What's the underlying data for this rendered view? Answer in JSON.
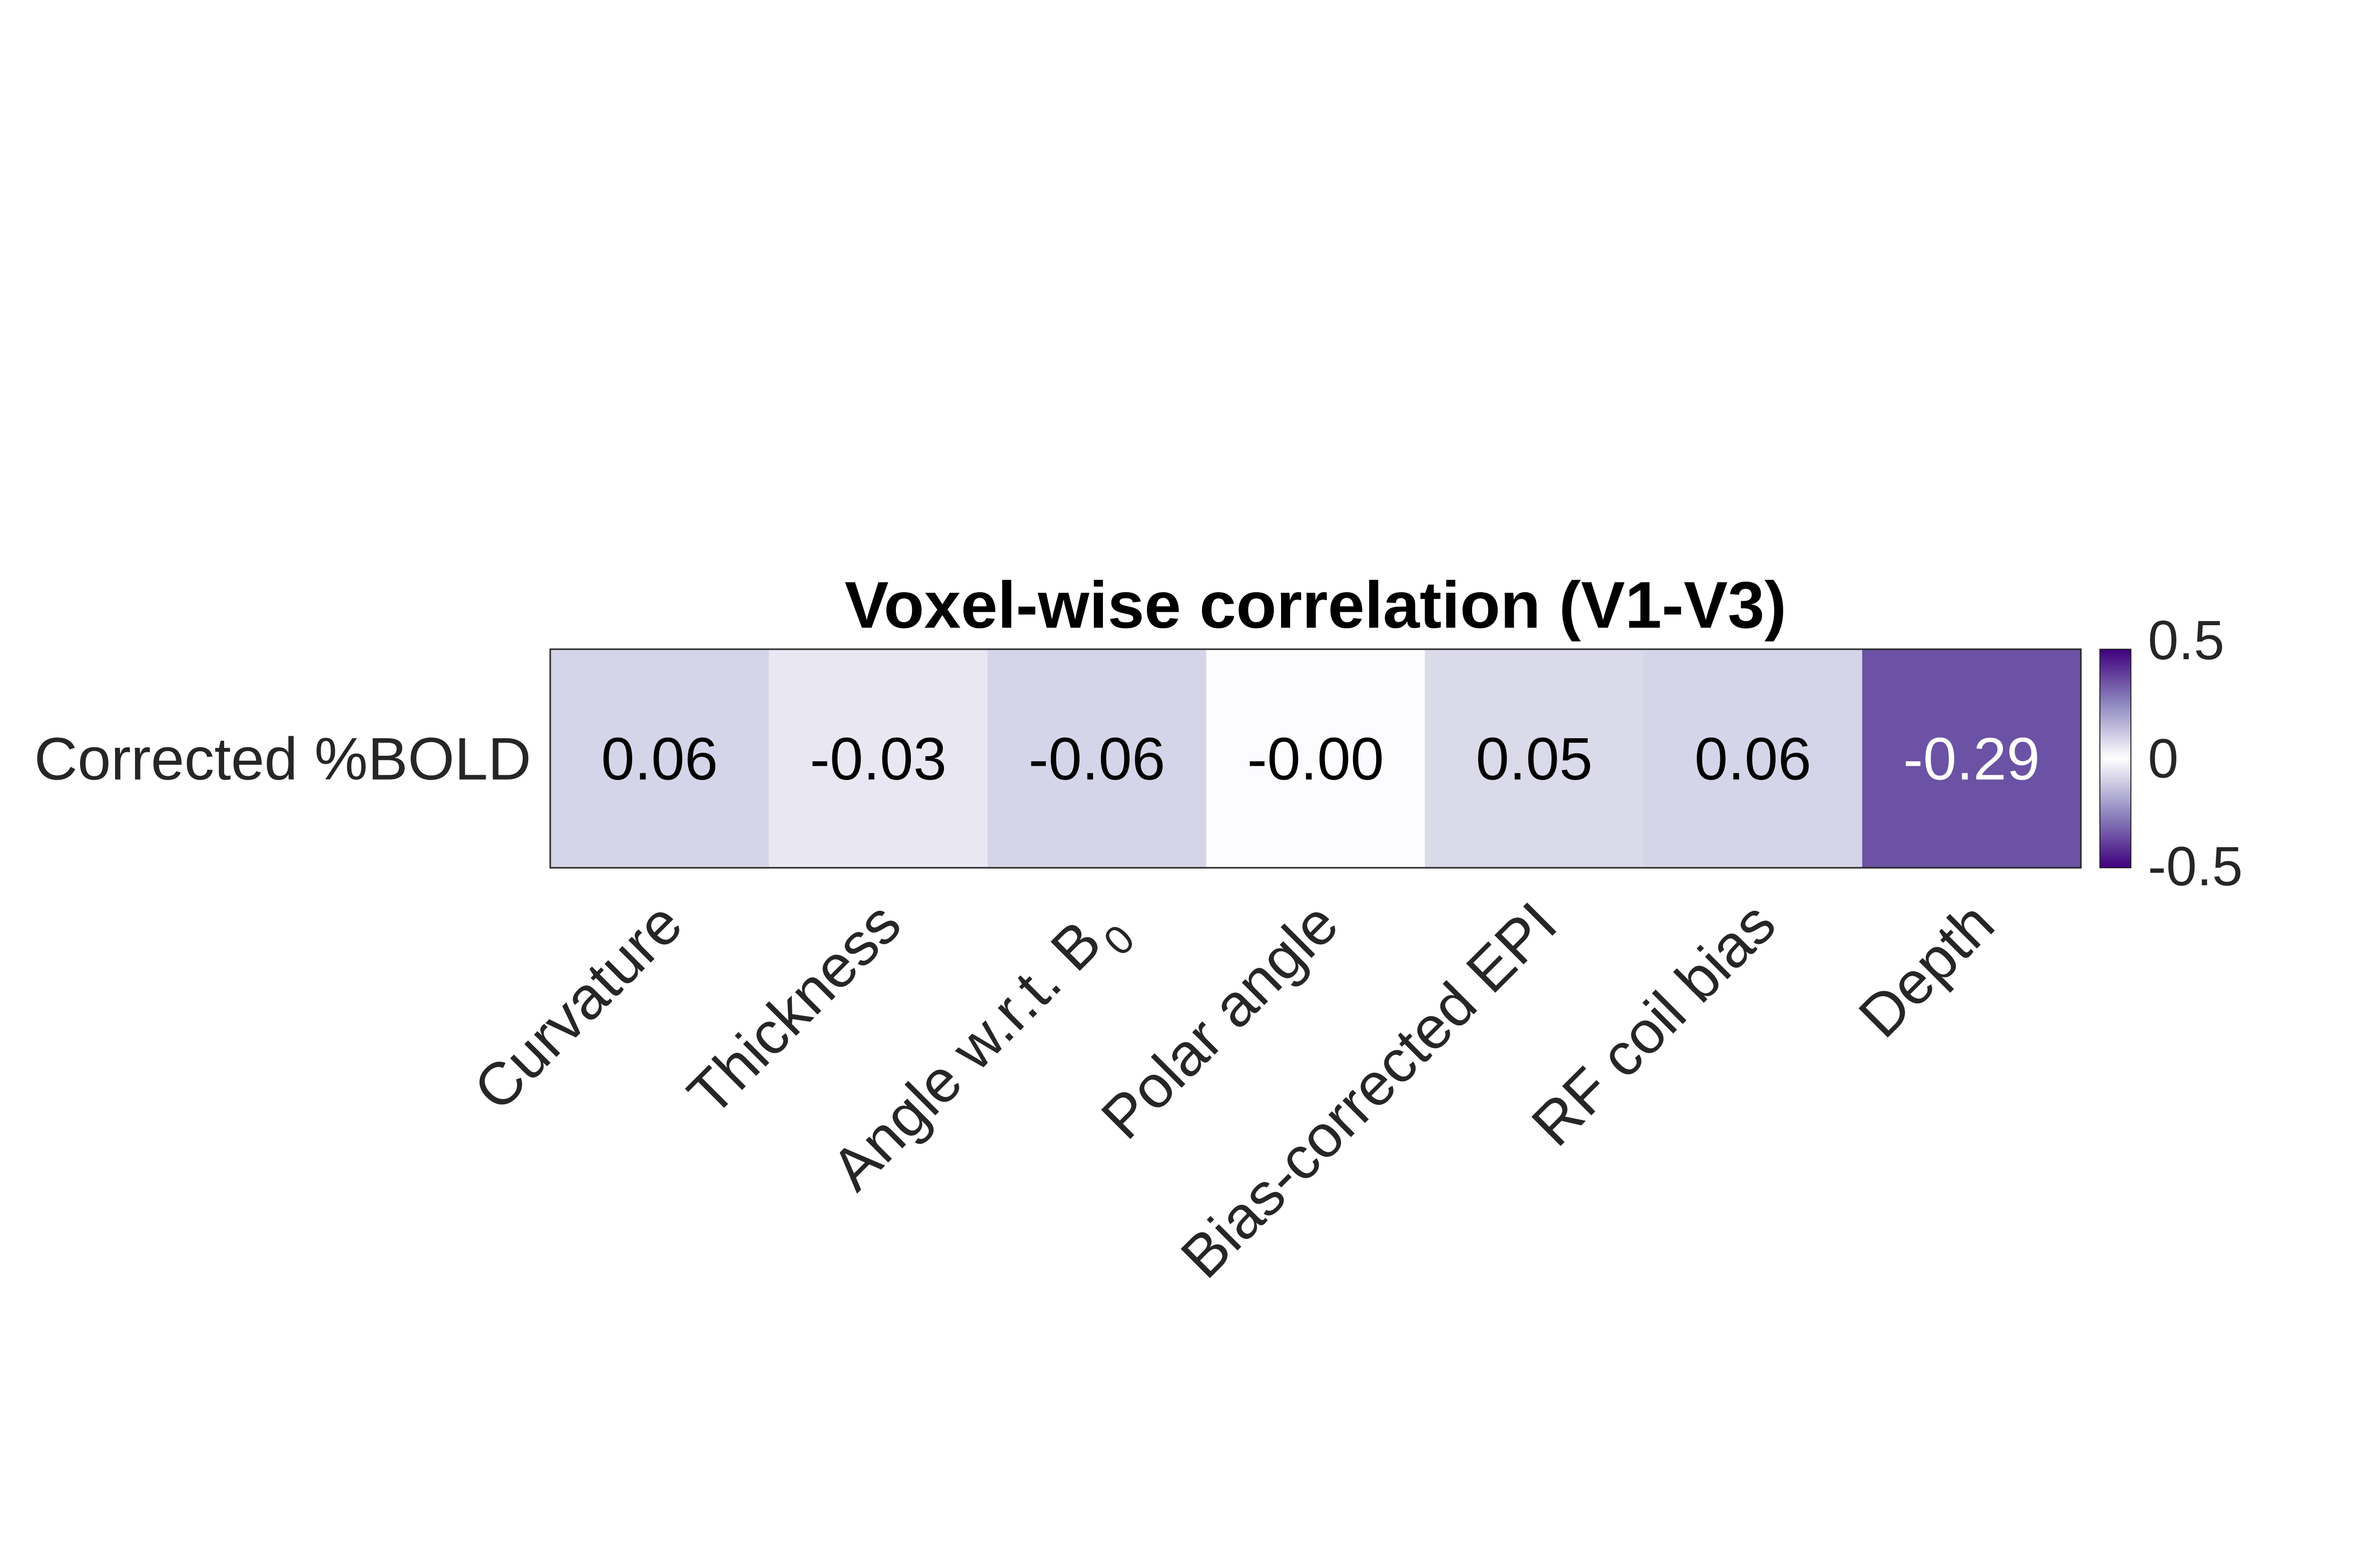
{
  "chart_data": {
    "type": "heatmap",
    "title": "Voxel-wise correlation (V1-V3)",
    "rows": [
      "Corrected %BOLD"
    ],
    "columns": [
      {
        "label": "Curvature",
        "subscript": ""
      },
      {
        "label": "Thickness",
        "subscript": ""
      },
      {
        "label": "Angle w.r.t. B",
        "subscript": "0"
      },
      {
        "label": "Polar angle",
        "subscript": ""
      },
      {
        "label": "Bias-corrected EPI",
        "subscript": ""
      },
      {
        "label": "RF coil bias",
        "subscript": ""
      },
      {
        "label": "Depth",
        "subscript": ""
      }
    ],
    "values": [
      [
        0.06,
        -0.03,
        -0.06,
        -0.0,
        0.05,
        0.06,
        -0.29
      ]
    ],
    "value_labels": [
      [
        "0.06",
        "-0.03",
        "-0.06",
        "-0.00",
        "0.05",
        "0.06",
        "-0.29"
      ]
    ],
    "colorbar": {
      "range": [
        -0.5,
        0.5
      ],
      "ticks": [
        "0.5",
        "0",
        "-0.5"
      ],
      "colors": [
        "#3f007d",
        "#ffffff",
        "#3f007d"
      ]
    }
  }
}
